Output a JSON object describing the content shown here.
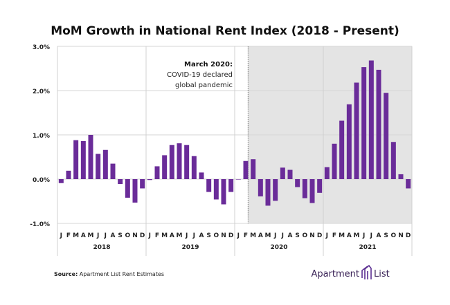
{
  "chart_data": {
    "type": "bar",
    "title": "MoM Growth in National Rent Index (2018 - Present)",
    "xlabel": "",
    "ylabel": "",
    "ylim": [
      -1.0,
      3.0
    ],
    "y_ticks": [
      "3.0%",
      "2.0%",
      "1.0%",
      "0.0%",
      "-1.0%"
    ],
    "y_tick_values": [
      3,
      2,
      1,
      0,
      -1
    ],
    "month_labels": [
      "J",
      "F",
      "M",
      "A",
      "M",
      "J",
      "J",
      "A",
      "S",
      "O",
      "N",
      "D"
    ],
    "years": [
      "2018",
      "2019",
      "2020",
      "2021"
    ],
    "grid": true,
    "values": [
      -0.09,
      0.19,
      0.88,
      0.86,
      1.0,
      0.57,
      0.66,
      0.35,
      -0.11,
      -0.42,
      -0.53,
      -0.21,
      -0.02,
      0.29,
      0.54,
      0.77,
      0.81,
      0.77,
      0.52,
      0.15,
      -0.29,
      -0.46,
      -0.57,
      -0.29,
      0.0,
      0.41,
      0.45,
      -0.39,
      -0.6,
      -0.49,
      0.26,
      0.21,
      -0.18,
      -0.43,
      -0.54,
      -0.31,
      0.27,
      0.8,
      1.32,
      1.69,
      2.18,
      2.53,
      2.68,
      2.47,
      1.95,
      0.84,
      0.11,
      -0.21
    ],
    "bar_color": "#6a2c99",
    "shaded_from": "March 2020",
    "shade_color": "#e4e4e4",
    "annotation": {
      "title": "March 2020:",
      "lines": [
        "COVID-19 declared",
        "global pandemic"
      ]
    }
  },
  "footer": {
    "source_label": "Source:",
    "source_text": " Apartment List Rent Estimates",
    "logo_text_left": "Apartment",
    "logo_text_right": "List",
    "logo_color": "#3b2458"
  }
}
